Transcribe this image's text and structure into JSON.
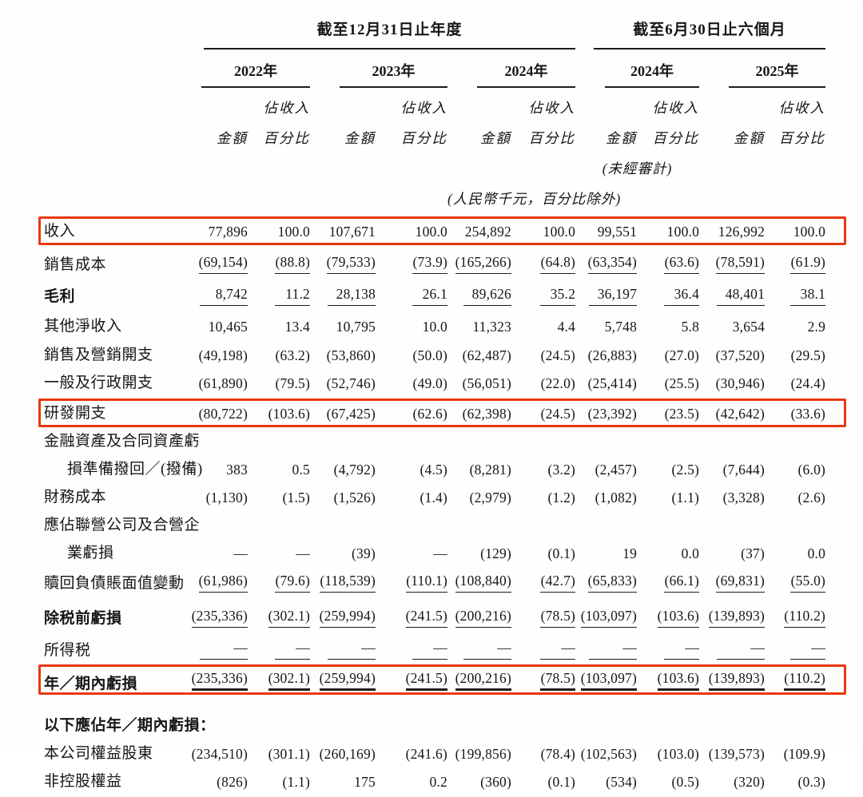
{
  "table": {
    "period_groups": [
      {
        "label": "截至12月31日止年度"
      },
      {
        "label": "截至6月30日止六個月"
      }
    ],
    "years": [
      {
        "label": "2022年"
      },
      {
        "label": "2023年"
      },
      {
        "label": "2024年"
      },
      {
        "label": "2024年"
      },
      {
        "label": "2025年"
      }
    ],
    "col_headers": {
      "amount": "金額",
      "pct_top": "佔收入",
      "pct_bottom": "百分比"
    },
    "unaudited_note": "(未經審計)",
    "unit_note": "(人民幣千元，百分比除外)",
    "rows": [
      {
        "label": "收入",
        "box": true,
        "values": [
          "77,896",
          "100.0",
          "107,671",
          "100.0",
          "254,892",
          "100.0",
          "99,551",
          "100.0",
          "126,992",
          "100.0"
        ]
      },
      {
        "label": "銷售成本",
        "rule": "single",
        "values": [
          "(69,154)",
          "(88.8)",
          "(79,533)",
          "(73.9)",
          "(165,266)",
          "(64.8)",
          "(63,354)",
          "(63.6)",
          "(78,591)",
          "(61.9)"
        ]
      },
      {
        "label": "毛利",
        "bold": true,
        "rule": "single",
        "values": [
          "8,742",
          "11.2",
          "28,138",
          "26.1",
          "89,626",
          "35.2",
          "36,197",
          "36.4",
          "48,401",
          "38.1"
        ]
      },
      {
        "label": "其他淨收入",
        "values": [
          "10,465",
          "13.4",
          "10,795",
          "10.0",
          "11,323",
          "4.4",
          "5,748",
          "5.8",
          "3,654",
          "2.9"
        ]
      },
      {
        "label": "銷售及營銷開支",
        "values": [
          "(49,198)",
          "(63.2)",
          "(53,860)",
          "(50.0)",
          "(62,487)",
          "(24.5)",
          "(26,883)",
          "(27.0)",
          "(37,520)",
          "(29.5)"
        ]
      },
      {
        "label": "一般及行政開支",
        "values": [
          "(61,890)",
          "(79.5)",
          "(52,746)",
          "(49.0)",
          "(56,051)",
          "(22.0)",
          "(25,414)",
          "(25.5)",
          "(30,946)",
          "(24.4)"
        ]
      },
      {
        "label": "研發開支",
        "box": true,
        "values": [
          "(80,722)",
          "(103.6)",
          "(67,425)",
          "(62.6)",
          "(62,398)",
          "(24.5)",
          "(23,392)",
          "(23.5)",
          "(42,642)",
          "(33.6)"
        ]
      },
      {
        "label": "金融資產及合同資產虧",
        "label2": "損準備撥回／(撥備)",
        "values": [
          "383",
          "0.5",
          "(4,792)",
          "(4.5)",
          "(8,281)",
          "(3.2)",
          "(2,457)",
          "(2.5)",
          "(7,644)",
          "(6.0)"
        ]
      },
      {
        "label": "財務成本",
        "values": [
          "(1,130)",
          "(1.5)",
          "(1,526)",
          "(1.4)",
          "(2,979)",
          "(1.2)",
          "(1,082)",
          "(1.1)",
          "(3,328)",
          "(2.6)"
        ]
      },
      {
        "label": "應佔聯營公司及合營企",
        "label2": "業虧損",
        "values": [
          "—",
          "—",
          "(39)",
          "—",
          "(129)",
          "(0.1)",
          "19",
          "0.0",
          "(37)",
          "0.0"
        ]
      },
      {
        "label": "贖回負債賬面值變動",
        "rule": "single",
        "values": [
          "(61,986)",
          "(79.6)",
          "(118,539)",
          "(110.1)",
          "(108,840)",
          "(42.7)",
          "(65,833)",
          "(66.1)",
          "(69,831)",
          "(55.0)"
        ]
      },
      {
        "label": "除税前虧損",
        "bold": true,
        "rule": "single",
        "values": [
          "(235,336)",
          "(302.1)",
          "(259,994)",
          "(241.5)",
          "(200,216)",
          "(78.5)",
          "(103,097)",
          "(103.6)",
          "(139,893)",
          "(110.2)"
        ]
      },
      {
        "label": "所得税",
        "rule": "single",
        "values": [
          "—",
          "—",
          "—",
          "—",
          "—",
          "—",
          "—",
          "—",
          "—",
          "—"
        ]
      },
      {
        "label": "年／期內虧損",
        "bold": true,
        "box": true,
        "rule": "double",
        "values": [
          "(235,336)",
          "(302.1)",
          "(259,994)",
          "(241.5)",
          "(200,216)",
          "(78.5)",
          "(103,097)",
          "(103.6)",
          "(139,893)",
          "(110.2)"
        ]
      },
      {
        "label": "以下應佔年／期內虧損：",
        "bold": true,
        "section": true,
        "values": null
      },
      {
        "label": "本公司權益股東",
        "values": [
          "(234,510)",
          "(301.1)",
          "(260,169)",
          "(241.6)",
          "(199,856)",
          "(78.4)",
          "(102,563)",
          "(103.0)",
          "(139,573)",
          "(109.9)"
        ]
      },
      {
        "label": "非控股權益",
        "values": [
          "(826)",
          "(1.1)",
          "175",
          "0.2",
          "(360)",
          "(0.1)",
          "(534)",
          "(0.5)",
          "(320)",
          "(0.3)"
        ]
      }
    ],
    "highlight_color": "#e8380f"
  }
}
